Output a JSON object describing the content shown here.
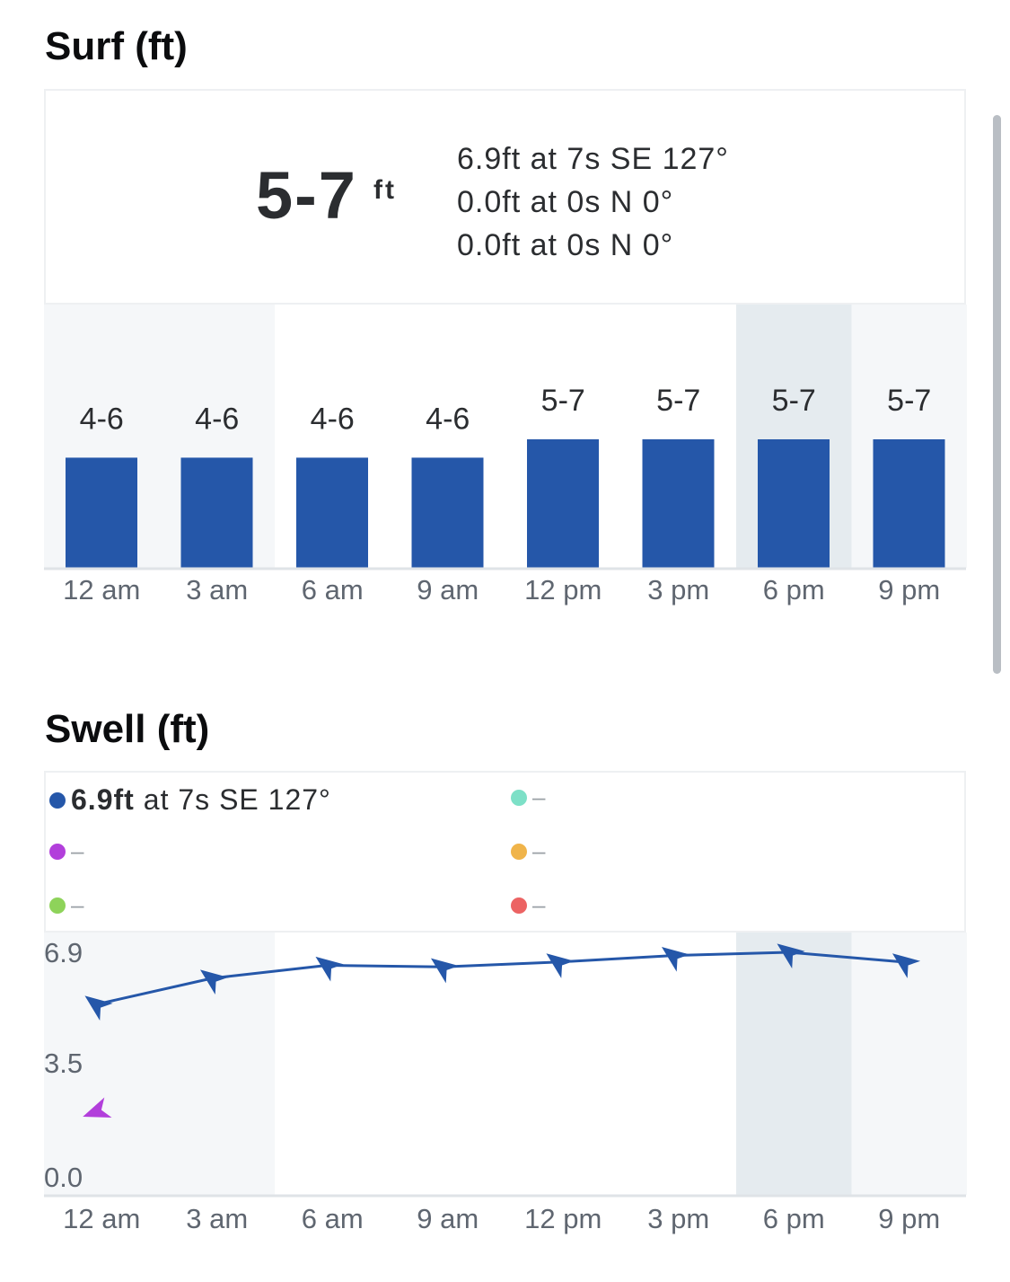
{
  "surf": {
    "title": "Surf (ft)",
    "summary": {
      "range": "5-7",
      "unit": "ft",
      "swells": [
        "6.9ft at 7s SE 127°",
        "0.0ft at 0s N 0°",
        "0.0ft at 0s N 0°"
      ]
    }
  },
  "swell": {
    "title": "Swell (ft)",
    "legend": {
      "primary_value": "6.9ft",
      "primary_rest": "at 7s SE 127°",
      "empty_mark": "–"
    }
  },
  "colors": {
    "bar": "#2557a9",
    "night_shade": "#f5f7f9",
    "current_shade": "#e5ebef",
    "swell1": "#2557a9",
    "swell2": "#b23fdb",
    "swell3": "#8ed35a",
    "swell4": "#7de0c7",
    "swell5": "#f0b44a",
    "swell6": "#ec6363"
  },
  "chart_data": [
    {
      "type": "bar",
      "categories": [
        "12 am",
        "3 am",
        "6 am",
        "9 am",
        "12 pm",
        "3 pm",
        "6 pm",
        "9 pm"
      ],
      "labels": [
        "4-6",
        "4-6",
        "4-6",
        "4-6",
        "5-7",
        "5-7",
        "5-7",
        "5-7"
      ],
      "series": [
        {
          "values": [
            6,
            6,
            6,
            6,
            7,
            7,
            7,
            7
          ]
        }
      ],
      "highlighted_category": "6 pm",
      "night_categories": [
        "12 am",
        "3 am",
        "9 pm"
      ]
    },
    {
      "type": "line",
      "categories": [
        "12 am",
        "3 am",
        "6 am",
        "9 am",
        "12 pm",
        "3 pm",
        "6 pm",
        "9 pm"
      ],
      "y_ticks": [
        "6.9",
        "3.5",
        "0.0"
      ],
      "ylim": [
        0,
        6.9
      ],
      "series": [
        {
          "values": [
            5.3,
            6.1,
            6.5,
            6.45,
            6.6,
            6.8,
            6.9,
            6.6
          ],
          "directions_deg": [
            127,
            127,
            127,
            127,
            127,
            127,
            127,
            127
          ]
        },
        {
          "values": [
            2.0,
            null,
            null,
            null,
            null,
            null,
            null,
            null
          ],
          "directions_deg": [
            70,
            null,
            null,
            null,
            null,
            null,
            null,
            null
          ]
        }
      ]
    }
  ]
}
